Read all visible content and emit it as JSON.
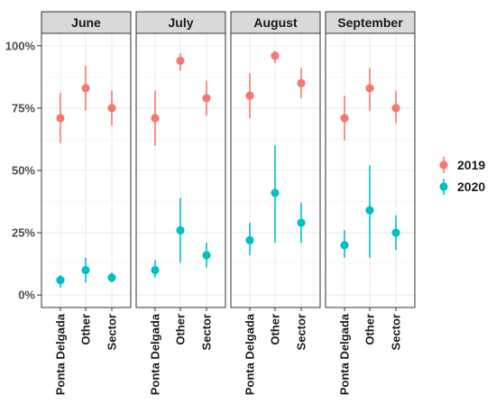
{
  "chart_data": {
    "type": "scatter",
    "subtype": "point-range faceted",
    "facets": [
      "June",
      "July",
      "August",
      "September"
    ],
    "categories": [
      "Ponta Delgada",
      "Other",
      "Sector"
    ],
    "y_ticks": [
      "0%",
      "25%",
      "50%",
      "75%",
      "100%"
    ],
    "ylim": [
      -0.05,
      1.05
    ],
    "grid": true,
    "legend_position": "right",
    "series": [
      {
        "name": "2019",
        "color": "#F8766D",
        "data": {
          "June": [
            {
              "y": 0.71,
              "lo": 0.61,
              "hi": 0.81
            },
            {
              "y": 0.83,
              "lo": 0.74,
              "hi": 0.92
            },
            {
              "y": 0.75,
              "lo": 0.68,
              "hi": 0.82
            }
          ],
          "July": [
            {
              "y": 0.71,
              "lo": 0.6,
              "hi": 0.82
            },
            {
              "y": 0.94,
              "lo": 0.9,
              "hi": 0.97
            },
            {
              "y": 0.79,
              "lo": 0.72,
              "hi": 0.86
            }
          ],
          "August": [
            {
              "y": 0.8,
              "lo": 0.71,
              "hi": 0.89
            },
            {
              "y": 0.96,
              "lo": 0.93,
              "hi": 0.98
            },
            {
              "y": 0.85,
              "lo": 0.79,
              "hi": 0.91
            }
          ],
          "September": [
            {
              "y": 0.71,
              "lo": 0.62,
              "hi": 0.8
            },
            {
              "y": 0.83,
              "lo": 0.74,
              "hi": 0.91
            },
            {
              "y": 0.75,
              "lo": 0.69,
              "hi": 0.82
            }
          ]
        }
      },
      {
        "name": "2020",
        "color": "#00BFC4",
        "data": {
          "June": [
            {
              "y": 0.06,
              "lo": 0.03,
              "hi": 0.08
            },
            {
              "y": 0.1,
              "lo": 0.05,
              "hi": 0.15
            },
            {
              "y": 0.07,
              "lo": 0.05,
              "hi": 0.09
            }
          ],
          "July": [
            {
              "y": 0.1,
              "lo": 0.07,
              "hi": 0.14
            },
            {
              "y": 0.26,
              "lo": 0.13,
              "hi": 0.39
            },
            {
              "y": 0.16,
              "lo": 0.11,
              "hi": 0.21
            }
          ],
          "August": [
            {
              "y": 0.22,
              "lo": 0.16,
              "hi": 0.29
            },
            {
              "y": 0.41,
              "lo": 0.21,
              "hi": 0.6
            },
            {
              "y": 0.29,
              "lo": 0.21,
              "hi": 0.37
            }
          ],
          "September": [
            {
              "y": 0.2,
              "lo": 0.15,
              "hi": 0.26
            },
            {
              "y": 0.34,
              "lo": 0.15,
              "hi": 0.52
            },
            {
              "y": 0.25,
              "lo": 0.18,
              "hi": 0.32
            }
          ]
        }
      }
    ]
  }
}
